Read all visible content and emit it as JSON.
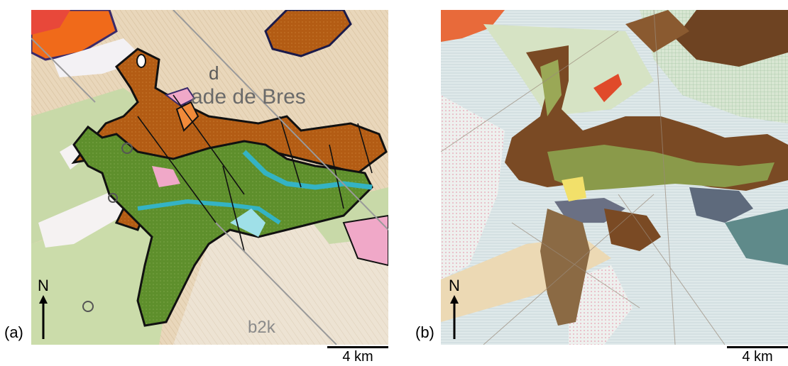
{
  "panels": [
    {
      "label": "(a)",
      "north_label": "N",
      "scale_label": "4 km",
      "map_texts": [
        "d",
        "ade de Bres",
        "b2k"
      ]
    },
    {
      "label": "(b)",
      "north_label": "N",
      "scale_label": "4 km"
    }
  ],
  "colors": {
    "brown_unit": "#b35c14",
    "green_unit": "#5e8f2c",
    "cyan_unit": "#34b3c4",
    "beige_background": "#e6d2b4",
    "light_green": "#c8d9a8",
    "pink_unit": "#f0a8c8",
    "orange_unit": "#f06a1a",
    "dark_brown_unit": "#6a3e1c",
    "pale_blue": "#d6e8ec"
  }
}
